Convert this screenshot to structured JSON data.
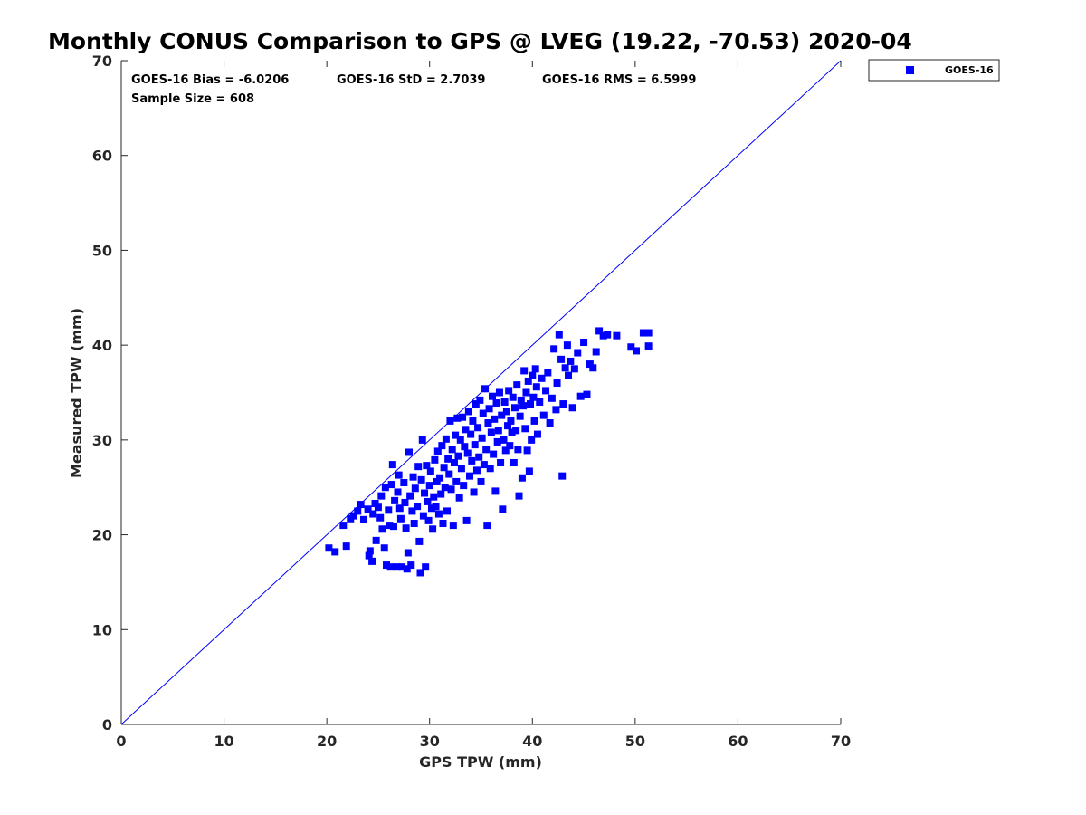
{
  "chart_data": {
    "type": "scatter",
    "title": "Monthly CONUS Comparison to GPS @ LVEG (19.22, -70.53) 2020-04",
    "xlabel": "GPS TPW (mm)",
    "ylabel": "Measured TPW (mm)",
    "xlim": [
      0,
      70
    ],
    "ylim": [
      0,
      70
    ],
    "xticks": [
      "0",
      "10",
      "20",
      "30",
      "40",
      "50",
      "60",
      "70"
    ],
    "yticks": [
      "0",
      "10",
      "20",
      "30",
      "40",
      "50",
      "60",
      "70"
    ],
    "grid": false,
    "legend_position": "top-right, outside plot",
    "reference_line": {
      "from": [
        0,
        0
      ],
      "to": [
        70,
        70
      ],
      "color": "#0000ff"
    },
    "stats": {
      "bias": "GOES-16 Bias = -6.0206",
      "std": "GOES-16 StD = 2.7039",
      "rms": "GOES-16 RMS = 6.5999",
      "sample": "Sample Size = 608"
    },
    "series": [
      {
        "name": "GOES-16",
        "color": "#0000ff",
        "marker": "square",
        "points": [
          [
            20.2,
            18.6
          ],
          [
            20.8,
            18.2
          ],
          [
            21.6,
            21.0
          ],
          [
            21.9,
            18.8
          ],
          [
            22.3,
            21.7
          ],
          [
            22.6,
            22.0
          ],
          [
            23.0,
            22.5
          ],
          [
            23.3,
            23.2
          ],
          [
            23.6,
            21.6
          ],
          [
            24.0,
            22.7
          ],
          [
            24.1,
            17.8
          ],
          [
            24.2,
            18.3
          ],
          [
            24.4,
            17.2
          ],
          [
            24.5,
            22.2
          ],
          [
            24.7,
            23.3
          ],
          [
            24.8,
            19.4
          ],
          [
            25.0,
            22.9
          ],
          [
            25.2,
            21.8
          ],
          [
            25.3,
            24.1
          ],
          [
            25.4,
            20.6
          ],
          [
            25.6,
            18.6
          ],
          [
            25.7,
            25.0
          ],
          [
            25.8,
            16.8
          ],
          [
            26.0,
            22.6
          ],
          [
            26.1,
            21.0
          ],
          [
            26.2,
            16.6
          ],
          [
            26.3,
            25.3
          ],
          [
            26.4,
            27.4
          ],
          [
            26.5,
            20.9
          ],
          [
            26.6,
            23.6
          ],
          [
            26.8,
            16.6
          ],
          [
            26.9,
            24.5
          ],
          [
            27.0,
            26.3
          ],
          [
            27.1,
            22.8
          ],
          [
            27.2,
            21.7
          ],
          [
            27.3,
            16.6
          ],
          [
            27.5,
            25.5
          ],
          [
            27.6,
            23.4
          ],
          [
            27.7,
            20.7
          ],
          [
            27.8,
            16.4
          ],
          [
            27.9,
            18.1
          ],
          [
            28.0,
            28.7
          ],
          [
            28.1,
            24.1
          ],
          [
            28.2,
            16.8
          ],
          [
            28.3,
            22.5
          ],
          [
            28.4,
            26.1
          ],
          [
            28.5,
            21.2
          ],
          [
            28.6,
            24.9
          ],
          [
            28.8,
            23.0
          ],
          [
            28.9,
            27.2
          ],
          [
            29.0,
            19.3
          ],
          [
            29.1,
            16.0
          ],
          [
            29.2,
            25.8
          ],
          [
            29.3,
            30.0
          ],
          [
            29.4,
            22.0
          ],
          [
            29.5,
            24.4
          ],
          [
            29.6,
            16.6
          ],
          [
            29.7,
            27.3
          ],
          [
            29.8,
            23.5
          ],
          [
            29.9,
            21.5
          ],
          [
            30.0,
            25.2
          ],
          [
            30.1,
            26.7
          ],
          [
            30.2,
            22.8
          ],
          [
            30.3,
            20.6
          ],
          [
            30.4,
            24.0
          ],
          [
            30.5,
            27.9
          ],
          [
            30.6,
            23.0
          ],
          [
            30.7,
            25.6
          ],
          [
            30.8,
            28.8
          ],
          [
            30.9,
            22.2
          ],
          [
            31.0,
            26.0
          ],
          [
            31.1,
            24.3
          ],
          [
            31.2,
            29.4
          ],
          [
            31.3,
            21.2
          ],
          [
            31.4,
            27.1
          ],
          [
            31.5,
            25.0
          ],
          [
            31.6,
            30.1
          ],
          [
            31.7,
            22.5
          ],
          [
            31.8,
            28.0
          ],
          [
            31.9,
            26.4
          ],
          [
            32.0,
            32.0
          ],
          [
            32.1,
            24.8
          ],
          [
            32.2,
            29.0
          ],
          [
            32.3,
            21.0
          ],
          [
            32.4,
            27.6
          ],
          [
            32.5,
            30.5
          ],
          [
            32.6,
            25.6
          ],
          [
            32.7,
            32.3
          ],
          [
            32.8,
            28.3
          ],
          [
            32.9,
            23.9
          ],
          [
            33.0,
            30.0
          ],
          [
            33.1,
            27.0
          ],
          [
            33.2,
            32.4
          ],
          [
            33.3,
            25.2
          ],
          [
            33.4,
            29.3
          ],
          [
            33.5,
            31.1
          ],
          [
            33.6,
            21.5
          ],
          [
            33.7,
            28.6
          ],
          [
            33.8,
            33.0
          ],
          [
            33.9,
            26.2
          ],
          [
            34.0,
            30.6
          ],
          [
            34.1,
            27.8
          ],
          [
            34.2,
            32.0
          ],
          [
            34.3,
            24.5
          ],
          [
            34.4,
            29.5
          ],
          [
            34.5,
            33.8
          ],
          [
            34.6,
            26.8
          ],
          [
            34.7,
            31.3
          ],
          [
            34.8,
            28.2
          ],
          [
            34.9,
            34.2
          ],
          [
            35.0,
            25.6
          ],
          [
            35.1,
            30.2
          ],
          [
            35.2,
            32.8
          ],
          [
            35.3,
            27.4
          ],
          [
            35.4,
            35.4
          ],
          [
            35.5,
            29.0
          ],
          [
            35.6,
            21.0
          ],
          [
            35.7,
            31.8
          ],
          [
            35.8,
            33.3
          ],
          [
            35.9,
            27.0
          ],
          [
            36.0,
            30.8
          ],
          [
            36.1,
            34.6
          ],
          [
            36.2,
            28.5
          ],
          [
            36.3,
            32.2
          ],
          [
            36.4,
            24.6
          ],
          [
            36.5,
            33.9
          ],
          [
            36.6,
            29.8
          ],
          [
            36.7,
            31.0
          ],
          [
            36.8,
            35.0
          ],
          [
            36.9,
            27.6
          ],
          [
            37.0,
            32.6
          ],
          [
            37.1,
            22.7
          ],
          [
            37.2,
            30.0
          ],
          [
            37.3,
            34.0
          ],
          [
            37.4,
            28.9
          ],
          [
            37.5,
            33.0
          ],
          [
            37.6,
            31.5
          ],
          [
            37.7,
            35.2
          ],
          [
            37.8,
            29.4
          ],
          [
            37.9,
            32.0
          ],
          [
            38.0,
            30.8
          ],
          [
            38.1,
            34.5
          ],
          [
            38.2,
            27.6
          ],
          [
            38.3,
            33.4
          ],
          [
            38.4,
            31.0
          ],
          [
            38.5,
            35.8
          ],
          [
            38.6,
            29.0
          ],
          [
            38.7,
            24.1
          ],
          [
            38.8,
            32.5
          ],
          [
            38.9,
            34.2
          ],
          [
            39.0,
            26.0
          ],
          [
            39.1,
            33.6
          ],
          [
            39.2,
            37.3
          ],
          [
            39.3,
            31.2
          ],
          [
            39.4,
            35.0
          ],
          [
            39.5,
            28.9
          ],
          [
            39.6,
            36.2
          ],
          [
            39.7,
            26.7
          ],
          [
            39.8,
            33.8
          ],
          [
            39.9,
            30.0
          ],
          [
            40.0,
            36.8
          ],
          [
            40.1,
            34.5
          ],
          [
            40.2,
            32.0
          ],
          [
            40.3,
            37.5
          ],
          [
            40.4,
            35.6
          ],
          [
            40.5,
            30.6
          ],
          [
            40.7,
            34.0
          ],
          [
            40.9,
            36.5
          ],
          [
            41.1,
            32.6
          ],
          [
            41.3,
            35.2
          ],
          [
            41.5,
            37.1
          ],
          [
            41.7,
            31.8
          ],
          [
            41.9,
            34.4
          ],
          [
            42.1,
            39.6
          ],
          [
            42.3,
            33.2
          ],
          [
            42.4,
            36.0
          ],
          [
            42.6,
            41.1
          ],
          [
            42.8,
            38.5
          ],
          [
            42.9,
            26.2
          ],
          [
            43.0,
            33.8
          ],
          [
            43.2,
            37.6
          ],
          [
            43.4,
            40.0
          ],
          [
            43.5,
            36.8
          ],
          [
            43.7,
            38.3
          ],
          [
            43.9,
            33.4
          ],
          [
            44.1,
            37.5
          ],
          [
            44.4,
            39.2
          ],
          [
            44.7,
            34.6
          ],
          [
            45.0,
            40.3
          ],
          [
            45.3,
            34.8
          ],
          [
            45.6,
            38.0
          ],
          [
            45.9,
            37.6
          ],
          [
            46.2,
            39.3
          ],
          [
            46.5,
            41.5
          ],
          [
            46.9,
            41.0
          ],
          [
            47.3,
            41.1
          ],
          [
            48.2,
            41.0
          ],
          [
            49.6,
            39.8
          ],
          [
            50.1,
            39.4
          ],
          [
            50.8,
            41.3
          ],
          [
            51.3,
            41.3
          ],
          [
            51.3,
            39.9
          ]
        ]
      }
    ]
  }
}
